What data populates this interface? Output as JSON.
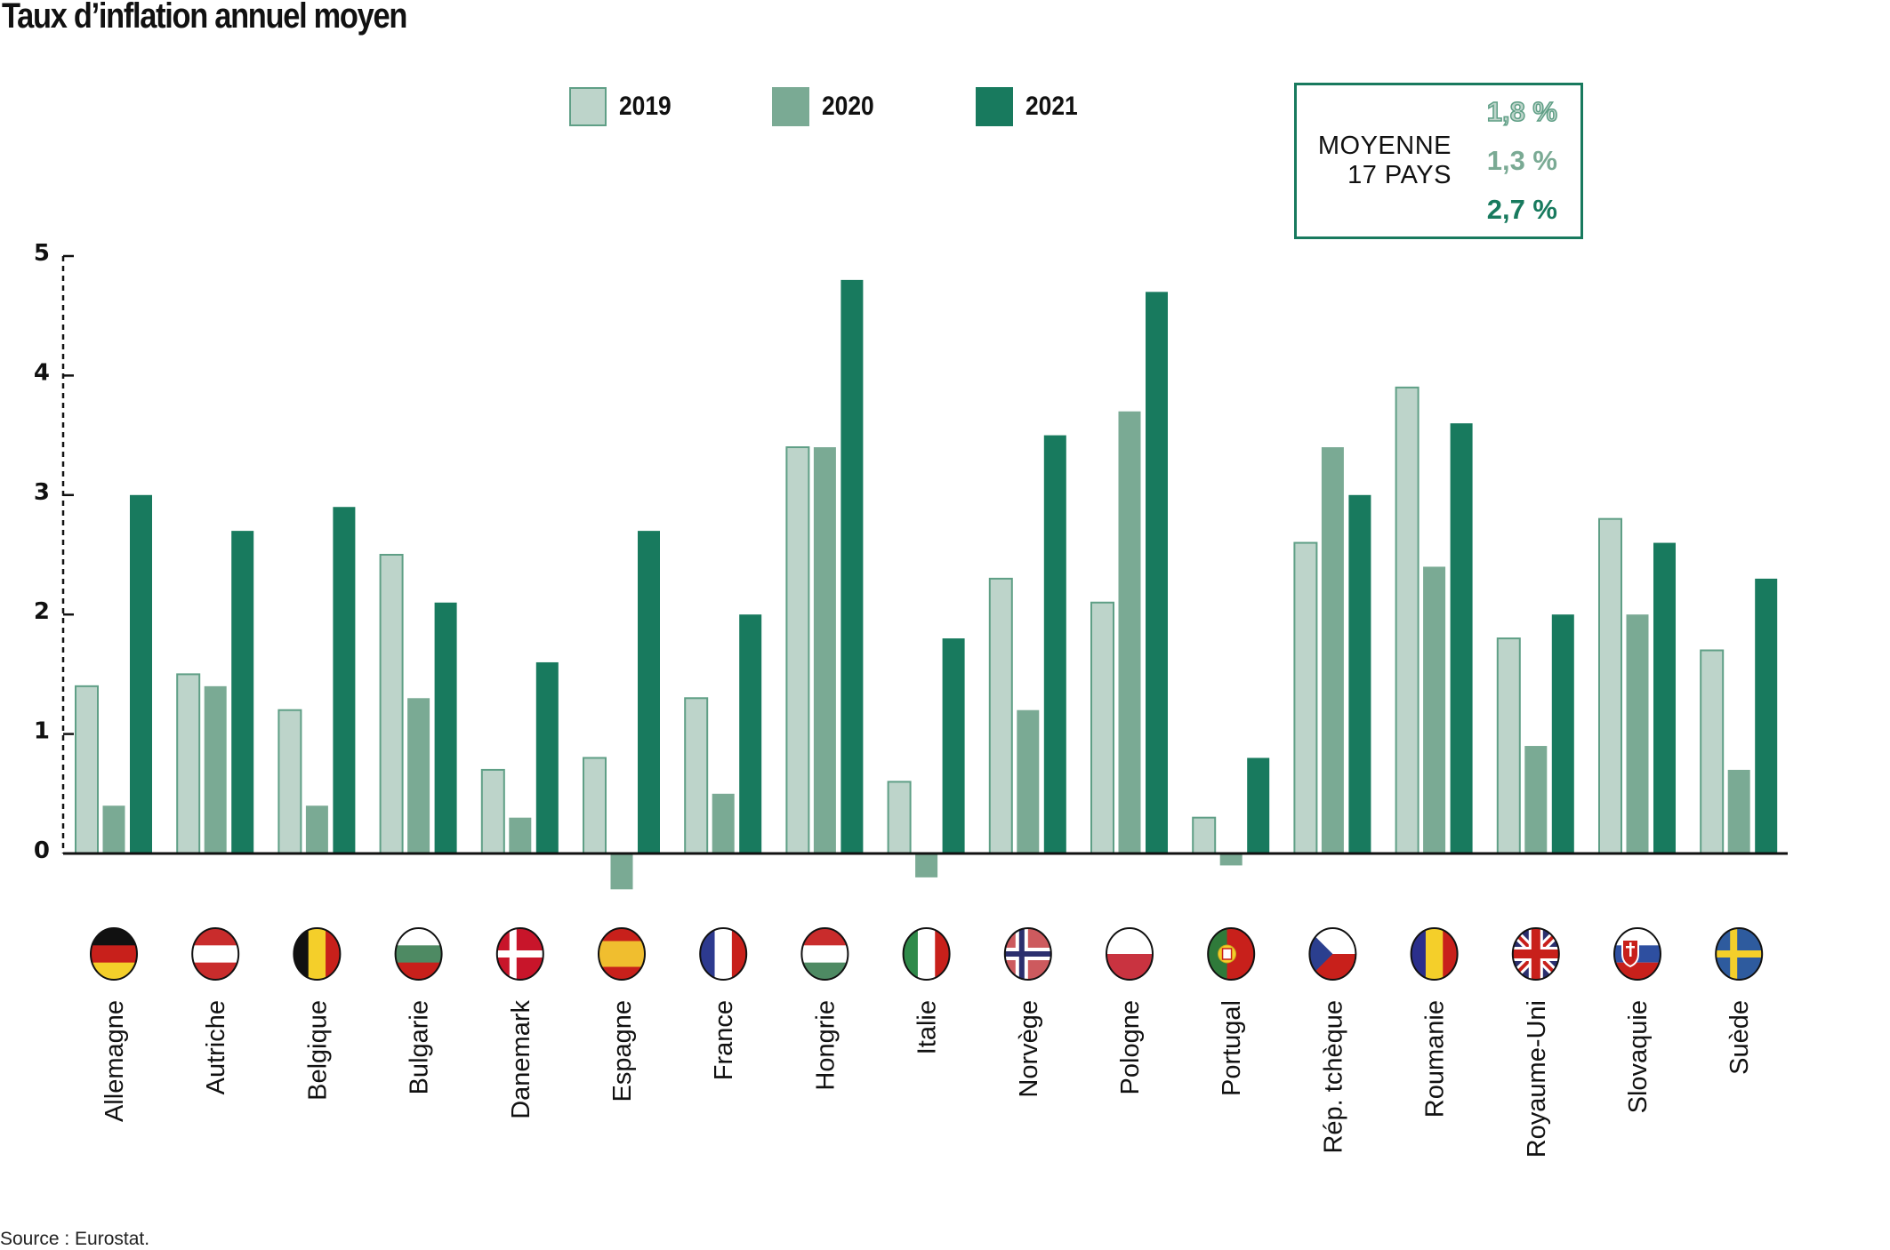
{
  "title": "Taux d’inflation annuel moyen",
  "source": "Source : Eurostat.",
  "legend": [
    {
      "label": "2019",
      "fill": "#bdd4ca",
      "stroke": "#5f9f86"
    },
    {
      "label": "2020",
      "fill": "#7aaa94",
      "stroke": "#7aaa94"
    },
    {
      "label": "2021",
      "fill": "#187a5e",
      "stroke": "#187a5e"
    }
  ],
  "average_box": {
    "label_line1": "MOYENNE",
    "label_line2": "17 PAYS",
    "values": [
      {
        "text": "1,8 %",
        "year": "2019",
        "color": "#bdd4ca",
        "outline": "#5f9f86"
      },
      {
        "text": "1,3 %",
        "year": "2020",
        "color": "#7aaa94",
        "outline": "#7aaa94"
      },
      {
        "text": "2,7 %",
        "year": "2021",
        "color": "#187a5e",
        "outline": "#187a5e"
      }
    ]
  },
  "chart_data": {
    "type": "bar",
    "title": "Taux d’inflation annuel moyen",
    "xlabel": "",
    "ylabel": "",
    "ylim": [
      -0.5,
      5
    ],
    "yticks": [
      0,
      1,
      2,
      3,
      4,
      5
    ],
    "grid": false,
    "legend_position": "top-center",
    "categories": [
      "Allemagne",
      "Autriche",
      "Belgique",
      "Bulgarie",
      "Danemark",
      "Espagne",
      "France",
      "Hongrie",
      "Italie",
      "Norvège",
      "Pologne",
      "Portugal",
      "Rép. tchèque",
      "Roumanie",
      "Royaume-Uni",
      "Slovaquie",
      "Suède"
    ],
    "flags": [
      "germany",
      "austria",
      "belgium",
      "bulgaria",
      "denmark",
      "spain",
      "france",
      "hungary",
      "italy",
      "norway",
      "poland",
      "portugal",
      "czech-republic",
      "romania",
      "united-kingdom",
      "slovakia",
      "sweden"
    ],
    "series": [
      {
        "name": "2019",
        "values": [
          1.4,
          1.5,
          1.2,
          2.5,
          0.7,
          0.8,
          1.3,
          3.4,
          0.6,
          2.3,
          2.1,
          0.3,
          2.6,
          3.9,
          1.8,
          2.8,
          1.7
        ]
      },
      {
        "name": "2020",
        "values": [
          0.4,
          1.4,
          0.4,
          1.3,
          0.3,
          -0.3,
          0.5,
          3.4,
          -0.2,
          1.2,
          3.7,
          -0.1,
          3.4,
          2.4,
          0.9,
          2.0,
          0.7
        ]
      },
      {
        "name": "2021",
        "values": [
          3.0,
          2.7,
          2.9,
          2.1,
          1.6,
          2.7,
          2.0,
          4.8,
          1.8,
          3.5,
          4.7,
          0.8,
          3.0,
          3.6,
          2.0,
          2.6,
          2.3
        ]
      }
    ],
    "averages": {
      "2019": 1.8,
      "2020": 1.3,
      "2021": 2.7
    },
    "units": "%"
  }
}
